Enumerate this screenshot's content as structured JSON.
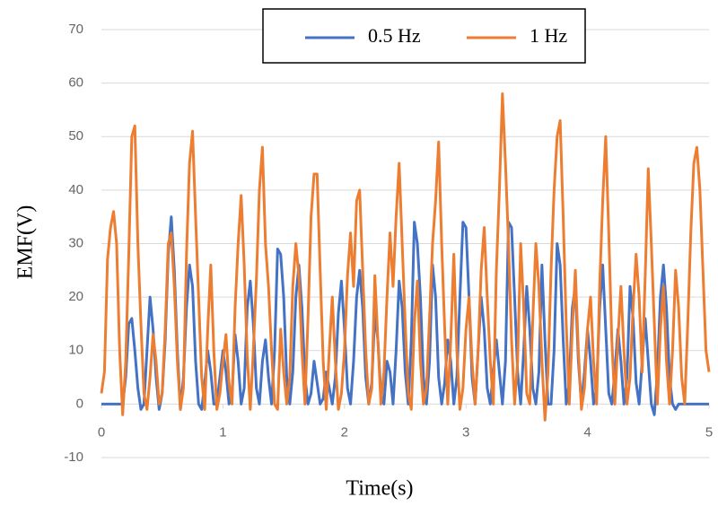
{
  "chart_data": {
    "type": "line",
    "x_label": "Time(s)",
    "y_label": "EMF(V)",
    "x": [
      0,
      0.025,
      0.05,
      0.075,
      0.1,
      0.125,
      0.15,
      0.175,
      0.2,
      0.225,
      0.25,
      0.275,
      0.3,
      0.325,
      0.35,
      0.375,
      0.4,
      0.425,
      0.45,
      0.475,
      0.5,
      0.525,
      0.55,
      0.575,
      0.6,
      0.625,
      0.65,
      0.675,
      0.7,
      0.725,
      0.75,
      0.775,
      0.8,
      0.825,
      0.85,
      0.875,
      0.9,
      0.925,
      0.95,
      0.975,
      1,
      1.025,
      1.05,
      1.075,
      1.1,
      1.125,
      1.15,
      1.175,
      1.2,
      1.225,
      1.25,
      1.275,
      1.3,
      1.325,
      1.35,
      1.375,
      1.4,
      1.425,
      1.45,
      1.475,
      1.5,
      1.525,
      1.55,
      1.575,
      1.6,
      1.625,
      1.65,
      1.675,
      1.7,
      1.725,
      1.75,
      1.775,
      1.8,
      1.825,
      1.85,
      1.875,
      1.9,
      1.925,
      1.95,
      1.975,
      2,
      2.025,
      2.05,
      2.075,
      2.1,
      2.125,
      2.15,
      2.175,
      2.2,
      2.225,
      2.25,
      2.275,
      2.3,
      2.325,
      2.35,
      2.375,
      2.4,
      2.425,
      2.45,
      2.475,
      2.5,
      2.525,
      2.55,
      2.575,
      2.6,
      2.625,
      2.65,
      2.675,
      2.7,
      2.725,
      2.75,
      2.775,
      2.8,
      2.825,
      2.85,
      2.875,
      2.9,
      2.925,
      2.95,
      2.975,
      3,
      3.025,
      3.05,
      3.075,
      3.1,
      3.125,
      3.15,
      3.175,
      3.2,
      3.225,
      3.25,
      3.275,
      3.3,
      3.325,
      3.35,
      3.375,
      3.4,
      3.425,
      3.45,
      3.475,
      3.5,
      3.525,
      3.55,
      3.575,
      3.6,
      3.625,
      3.65,
      3.675,
      3.7,
      3.725,
      3.75,
      3.775,
      3.8,
      3.825,
      3.85,
      3.875,
      3.9,
      3.925,
      3.95,
      3.975,
      4,
      4.025,
      4.05,
      4.075,
      4.1,
      4.125,
      4.15,
      4.175,
      4.2,
      4.225,
      4.25,
      4.275,
      4.3,
      4.325,
      4.35,
      4.375,
      4.4,
      4.425,
      4.45,
      4.475,
      4.5,
      4.525,
      4.55,
      4.575,
      4.6,
      4.625,
      4.65,
      4.675,
      4.7,
      4.725,
      4.75,
      4.775,
      4.8,
      4.825,
      4.85,
      4.875,
      4.9,
      4.925,
      4.95,
      4.975,
      5
    ],
    "series": [
      {
        "name": "0.5 Hz",
        "color": "#4472c4",
        "values": [
          0,
          0,
          0,
          0,
          0,
          0,
          0,
          0,
          5,
          15,
          16,
          10,
          3,
          -1,
          0,
          10,
          20,
          14,
          5,
          -1,
          2,
          12,
          28,
          35,
          25,
          10,
          -1,
          5,
          18,
          26,
          22,
          8,
          0,
          -1,
          4,
          10,
          6,
          0,
          0,
          5,
          10,
          6,
          0,
          2,
          13,
          8,
          0,
          3,
          18,
          23,
          15,
          3,
          0,
          8,
          12,
          5,
          0,
          10,
          29,
          28,
          20,
          5,
          0,
          6,
          20,
          26,
          18,
          5,
          0,
          2,
          8,
          4,
          0,
          1,
          6,
          3,
          0,
          5,
          17,
          23,
          14,
          3,
          0,
          8,
          20,
          25,
          18,
          5,
          0,
          4,
          17,
          12,
          2,
          0,
          8,
          6,
          0,
          10,
          23,
          18,
          6,
          0,
          12,
          34,
          30,
          20,
          5,
          0,
          8,
          26,
          20,
          5,
          0,
          4,
          12,
          8,
          0,
          5,
          20,
          34,
          33,
          20,
          5,
          0,
          10,
          20,
          14,
          3,
          0,
          6,
          12,
          6,
          0,
          8,
          34,
          33,
          20,
          6,
          0,
          10,
          22,
          14,
          3,
          0,
          6,
          26,
          12,
          0,
          0,
          10,
          30,
          26,
          12,
          0,
          4,
          18,
          22,
          8,
          0,
          6,
          14,
          8,
          0,
          3,
          18,
          26,
          14,
          2,
          0,
          6,
          14,
          8,
          0,
          5,
          22,
          16,
          4,
          0,
          8,
          16,
          8,
          0,
          -2,
          6,
          20,
          26,
          18,
          5,
          0,
          -1,
          0,
          0,
          0,
          0,
          0,
          0,
          0,
          0,
          0,
          0,
          0
        ]
      },
      {
        "name": "1 Hz",
        "color": "#ed7d31",
        "values": [
          2,
          6,
          27,
          33,
          36,
          30,
          10,
          -2,
          8,
          28,
          50,
          52,
          30,
          15,
          2,
          -1,
          5,
          13,
          8,
          0,
          2,
          14,
          30,
          32,
          22,
          8,
          -1,
          3,
          28,
          45,
          51,
          35,
          20,
          5,
          -1,
          14,
          26,
          10,
          -1,
          2,
          8,
          13,
          4,
          0,
          18,
          30,
          39,
          26,
          9,
          -1,
          10,
          23,
          40,
          48,
          30,
          22,
          10,
          0,
          -1,
          14,
          6,
          0,
          5,
          22,
          30,
          24,
          10,
          0,
          16,
          35,
          43,
          43,
          25,
          8,
          -1,
          10,
          20,
          8,
          -1,
          2,
          10,
          24,
          32,
          22,
          38,
          40,
          25,
          10,
          0,
          3,
          24,
          12,
          0,
          6,
          20,
          32,
          22,
          35,
          45,
          30,
          15,
          2,
          -1,
          15,
          23,
          8,
          0,
          3,
          16,
          30,
          38,
          49,
          30,
          14,
          0,
          12,
          28,
          10,
          -1,
          3,
          14,
          20,
          8,
          0,
          10,
          25,
          33,
          20,
          8,
          0,
          25,
          40,
          58,
          45,
          30,
          12,
          0,
          8,
          30,
          18,
          2,
          0,
          16,
          30,
          22,
          8,
          -3,
          6,
          25,
          40,
          50,
          53,
          35,
          15,
          0,
          14,
          25,
          10,
          -1,
          3,
          14,
          20,
          8,
          0,
          22,
          38,
          50,
          32,
          12,
          0,
          12,
          22,
          10,
          0,
          5,
          18,
          28,
          20,
          6,
          24,
          44,
          30,
          15,
          0,
          14,
          22,
          8,
          0,
          10,
          25,
          18,
          5,
          0,
          15,
          32,
          45,
          48,
          40,
          25,
          10,
          6
        ]
      }
    ],
    "xlim": [
      0,
      5
    ],
    "xticks": [
      0,
      1,
      2,
      3,
      4,
      5
    ],
    "ylim": [
      -10,
      70
    ],
    "yticks": [
      -10,
      0,
      10,
      20,
      30,
      40,
      50,
      60,
      70
    ],
    "grid": true,
    "legend": "top"
  }
}
